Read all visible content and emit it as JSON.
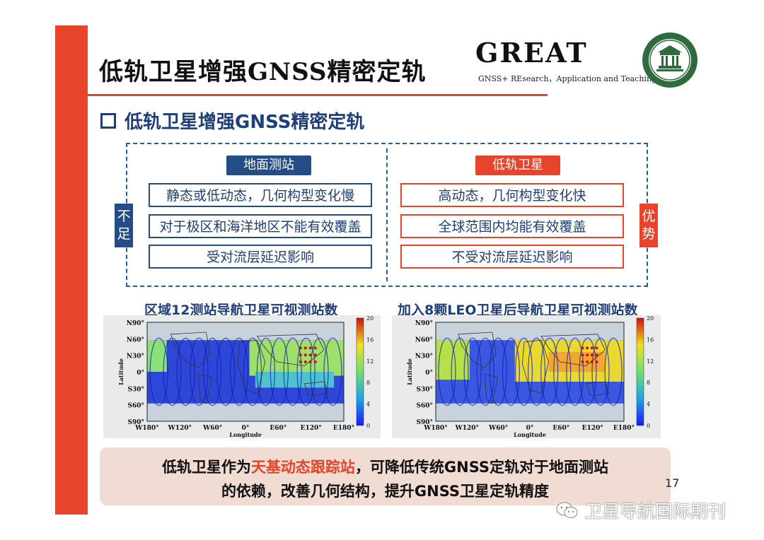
{
  "header": {
    "title": "低轨卫星增强GNSS精密定轨",
    "logo_text": "GREAT",
    "logo_subtitle": "GNSS+ REsearch，Application and Teaching",
    "accent_color": "#e8442b"
  },
  "section": {
    "heading": "低轨卫星增强GNSS精密定轨"
  },
  "comparison": {
    "left": {
      "label": "地面测站",
      "side_tag": "不足",
      "color": "#244d86",
      "items": [
        "静态或低动态，几何构型变化慢",
        "对于极区和海洋地区不能有效覆盖",
        "受对流层延迟影响"
      ]
    },
    "right": {
      "label": "低轨卫星",
      "side_tag": "优势",
      "color": "#e8442b",
      "items": [
        "高动态，几何构型变化快",
        "全球范围内均能有效覆盖",
        "不受对流层延迟影响"
      ]
    }
  },
  "maps": [
    {
      "title": "区域12测站导航卫星可视测站数",
      "ylabel": "Latitude",
      "xlabel": "Longitude",
      "y_ticks": [
        "N90°",
        "N60°",
        "N30°",
        "0°",
        "S30°",
        "S60°",
        "S90°"
      ],
      "x_ticks": [
        "W180°",
        "W120°",
        "W60°",
        "0°",
        "E60°",
        "E120°",
        "E180°"
      ],
      "colorbar_ticks": [
        "20",
        "16",
        "12",
        "8",
        "4",
        "0"
      ]
    },
    {
      "title": "加入8颗LEO卫星后导航卫星可视测站数",
      "ylabel": "Latitude",
      "xlabel": "Longitude",
      "y_ticks": [
        "N90°",
        "N60°",
        "N30°",
        "0°",
        "S30°",
        "S60°",
        "S90°"
      ],
      "x_ticks": [
        "W180°",
        "W120°",
        "W60°",
        "0°",
        "E60°",
        "E120°",
        "E180°"
      ],
      "colorbar_ticks": [
        "20",
        "16",
        "12",
        "8",
        "4",
        "0"
      ]
    }
  ],
  "summary": {
    "line1_prefix": "低轨卫星作为",
    "line1_highlight": "天基动态跟踪站",
    "line1_suffix": "，可降低传统GNSS定轨对于地面测站",
    "line2": "的依赖，改善几何结构，提升GNSS卫星定轨精度"
  },
  "page_number": "17",
  "watermark": {
    "text": "卫星导航国际期刊",
    "icon": "wechat-icon"
  }
}
